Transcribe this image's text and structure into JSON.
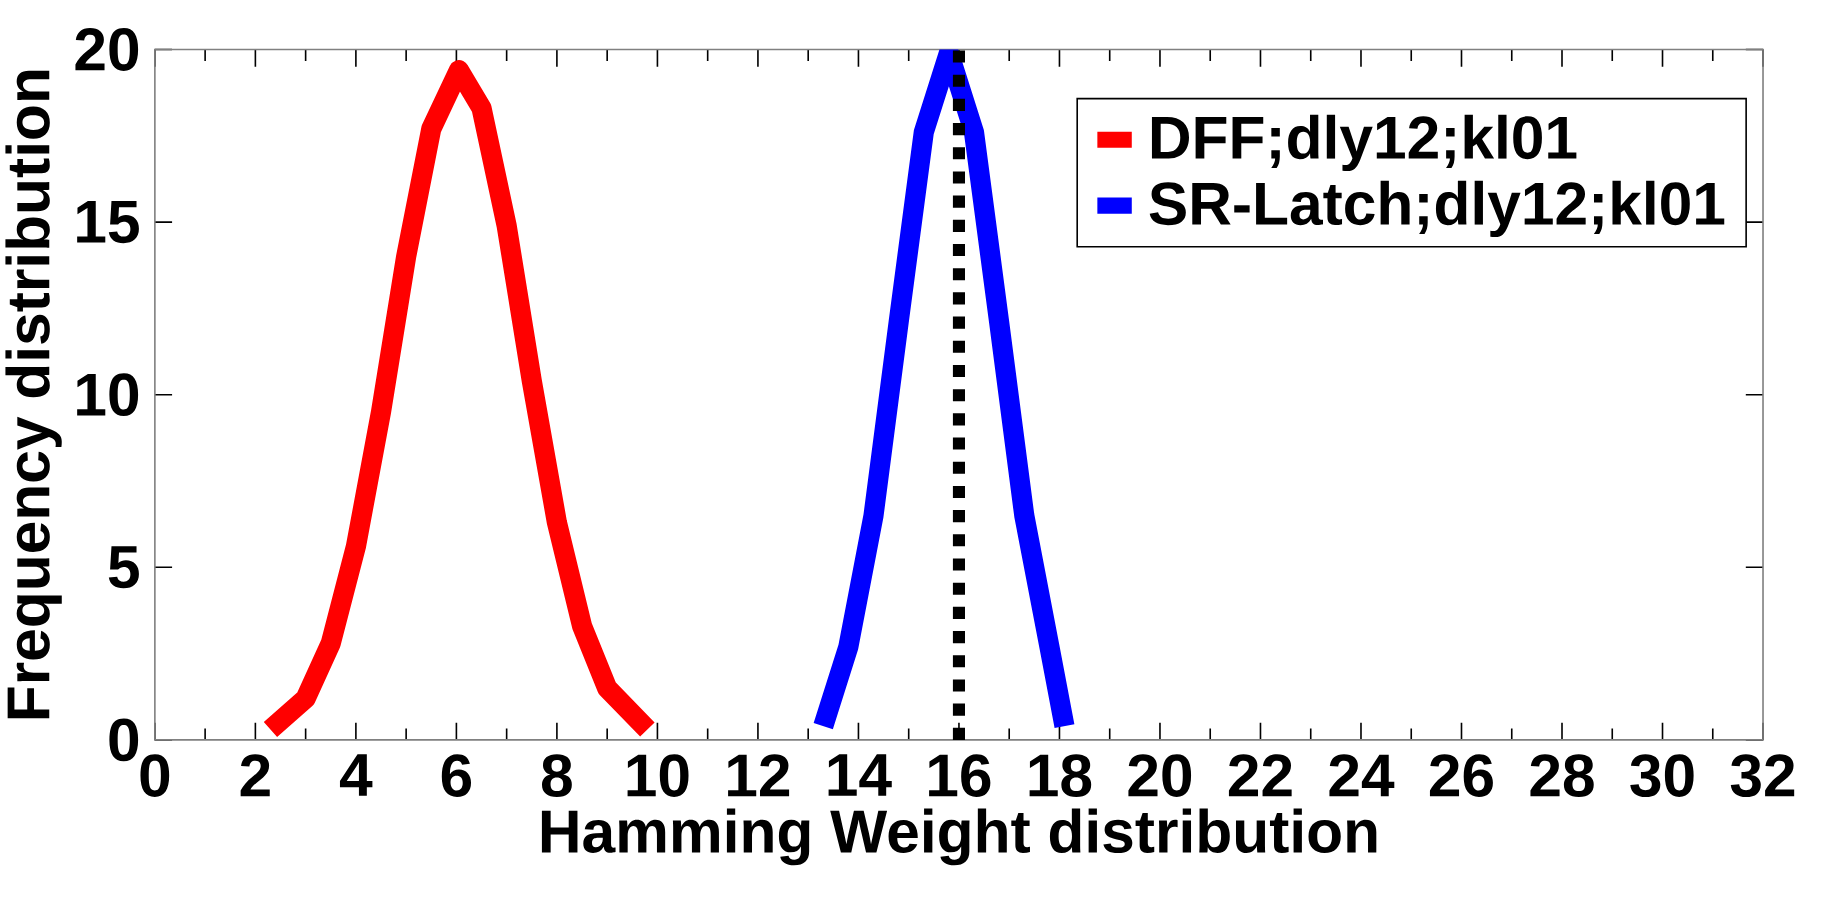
{
  "chart_data": {
    "type": "line",
    "xlabel": "Hamming Weight distribution",
    "ylabel": "Frequency distribution",
    "xlim": [
      0,
      32
    ],
    "ylim": [
      0,
      20
    ],
    "xticks": [
      0,
      2,
      4,
      6,
      8,
      10,
      12,
      14,
      16,
      18,
      20,
      22,
      24,
      26,
      28,
      30,
      32
    ],
    "yticks": [
      0,
      5,
      10,
      15,
      20
    ],
    "legend": "top right",
    "marker": "none",
    "line_style": "solid",
    "grid": false,
    "series": [
      {
        "name": "DFF;dly12;kl01",
        "color": "#ff0000",
        "x": [
          2.3,
          3,
          3.5,
          4,
          4.5,
          5,
          5.5,
          6.05,
          6.5,
          7,
          7.5,
          8,
          8.5,
          9,
          9.8
        ],
        "values": [
          0.3,
          1.2,
          2.8,
          5.6,
          9.5,
          14.0,
          17.7,
          19.4,
          18.3,
          14.9,
          10.4,
          6.3,
          3.3,
          1.5,
          0.3
        ]
      },
      {
        "name": "SR-Latch;dly12;kl01",
        "color": "#0000ff",
        "x": [
          13.3,
          13.8,
          14.3,
          14.8,
          15.3,
          15.8,
          16.3,
          16.8,
          17.3,
          17.8,
          18.1
        ],
        "values": [
          0.4,
          2.7,
          6.5,
          12.1,
          17.6,
          19.9,
          17.6,
          12.1,
          6.5,
          2.7,
          0.4
        ]
      }
    ],
    "ref_lines": [
      {
        "axis": "x",
        "value": 16,
        "color": "#000000",
        "line_style": "dotted"
      }
    ]
  }
}
